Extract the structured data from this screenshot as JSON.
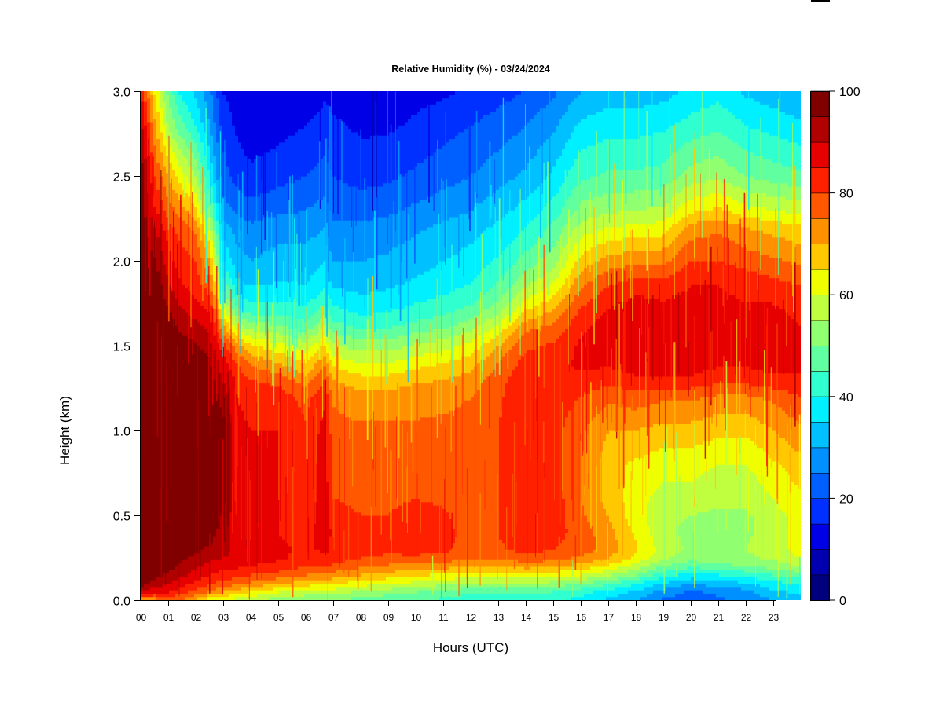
{
  "chart_data": {
    "type": "heatmap",
    "title": "Relative Humidity (%) - 03/24/2024",
    "xlabel": "Hours (UTC)",
    "ylabel": "Height (km)",
    "xlim": [
      0,
      24
    ],
    "ylim": [
      0,
      3
    ],
    "x_tick_labels": [
      "00",
      "01",
      "02",
      "03",
      "04",
      "05",
      "06",
      "07",
      "08",
      "09",
      "10",
      "11",
      "12",
      "13",
      "14",
      "15",
      "16",
      "17",
      "18",
      "19",
      "20",
      "21",
      "22",
      "23"
    ],
    "y_tick_labels": [
      "0.0",
      "0.5",
      "1.0",
      "1.5",
      "2.0",
      "2.5",
      "3.0"
    ],
    "y_ticks": [
      0,
      0.5,
      1.0,
      1.5,
      2.0,
      2.5,
      3.0
    ],
    "colorbar": {
      "min": 0,
      "max": 100,
      "step": 5,
      "tick_values": [
        0,
        20,
        40,
        60,
        80,
        100
      ],
      "tick_labels": [
        "0",
        "20",
        "40",
        "60",
        "80",
        "100"
      ],
      "colors": [
        "#00007f",
        "#0000b0",
        "#0000e6",
        "#0030ff",
        "#0060ff",
        "#0090ff",
        "#00c0ff",
        "#00f0ff",
        "#30ffd0",
        "#60ffa0",
        "#90ff70",
        "#c0ff40",
        "#f0ff00",
        "#ffc800",
        "#ff9000",
        "#ff5800",
        "#ff2000",
        "#e60000",
        "#b00000",
        "#800000"
      ]
    },
    "grid": false,
    "legend": "colorbar-right",
    "profile_heights_km": [
      0.0,
      0.05,
      0.1,
      0.15,
      0.2,
      0.25,
      0.3,
      0.4,
      0.5,
      0.6,
      0.8,
      1.0,
      1.2,
      1.3,
      1.4,
      1.5,
      1.6,
      1.7,
      1.8,
      1.9,
      2.0,
      2.1,
      2.2,
      2.3,
      2.5,
      2.8,
      3.0
    ],
    "profiles": [
      {
        "hour": 0.0,
        "rh": [
          70,
          90,
          97,
          99,
          99,
          99,
          99,
          99,
          99,
          99,
          99,
          99,
          99,
          99,
          99,
          99,
          99,
          99,
          99,
          99,
          99,
          99,
          99,
          99,
          99,
          92,
          85
        ]
      },
      {
        "hour": 0.5,
        "rh": [
          72,
          85,
          93,
          97,
          99,
          99,
          99,
          99,
          99,
          99,
          99,
          99,
          99,
          99,
          99,
          99,
          99,
          99,
          99,
          98,
          96,
          93,
          90,
          86,
          80,
          72,
          65
        ]
      },
      {
        "hour": 1.0,
        "rh": [
          75,
          85,
          90,
          94,
          97,
          99,
          99,
          99,
          99,
          99,
          99,
          99,
          99,
          99,
          99,
          99,
          98,
          96,
          93,
          90,
          87,
          85,
          82,
          78,
          70,
          55,
          48
        ]
      },
      {
        "hour": 1.5,
        "rh": [
          75,
          82,
          87,
          91,
          94,
          96,
          98,
          99,
          99,
          99,
          99,
          99,
          99,
          99,
          98,
          97,
          94,
          91,
          87,
          84,
          82,
          80,
          77,
          72,
          62,
          46,
          38
        ]
      },
      {
        "hour": 2.0,
        "rh": [
          68,
          78,
          84,
          88,
          91,
          94,
          96,
          98,
          99,
          99,
          99,
          99,
          99,
          99,
          98,
          96,
          92,
          88,
          84,
          82,
          80,
          77,
          73,
          66,
          55,
          40,
          34
        ]
      },
      {
        "hour": 2.5,
        "rh": [
          62,
          74,
          80,
          85,
          88,
          91,
          94,
          97,
          99,
          99,
          99,
          99,
          99,
          98,
          96,
          93,
          89,
          85,
          80,
          75,
          70,
          65,
          58,
          50,
          40,
          30,
          26
        ]
      },
      {
        "hour": 3.0,
        "rh": [
          60,
          70,
          78,
          83,
          87,
          90,
          92,
          93,
          94,
          96,
          97,
          97,
          93,
          90,
          87,
          82,
          72,
          62,
          52,
          45,
          40,
          36,
          32,
          27,
          22,
          18,
          15
        ]
      },
      {
        "hour": 3.5,
        "rh": [
          58,
          67,
          76,
          82,
          86,
          88,
          88,
          86,
          86,
          86,
          86,
          86,
          85,
          84,
          80,
          72,
          60,
          48,
          40,
          35,
          32,
          30,
          28,
          24,
          18,
          14,
          12
        ]
      },
      {
        "hour": 4.0,
        "rh": [
          56,
          64,
          74,
          80,
          85,
          87,
          86,
          85,
          85,
          85,
          85,
          85,
          84,
          80,
          74,
          66,
          54,
          44,
          37,
          33,
          30,
          28,
          26,
          22,
          16,
          12,
          10
        ]
      },
      {
        "hour": 5.0,
        "rh": [
          52,
          60,
          70,
          78,
          83,
          86,
          86,
          85,
          85,
          85,
          85,
          85,
          83,
          78,
          70,
          62,
          52,
          44,
          38,
          34,
          32,
          30,
          28,
          24,
          18,
          13,
          10
        ]
      },
      {
        "hour": 6.0,
        "rh": [
          50,
          58,
          67,
          75,
          80,
          83,
          84,
          83,
          83,
          82,
          82,
          81,
          78,
          72,
          65,
          57,
          48,
          42,
          37,
          34,
          32,
          30,
          28,
          25,
          20,
          15,
          12
        ]
      },
      {
        "hour": 6.7,
        "rh": [
          50,
          58,
          66,
          74,
          80,
          84,
          86,
          88,
          88,
          88,
          88,
          87,
          84,
          80,
          74,
          66,
          56,
          48,
          42,
          38,
          35,
          32,
          30,
          27,
          22,
          17,
          14
        ]
      },
      {
        "hour": 7.0,
        "rh": [
          50,
          57,
          65,
          73,
          79,
          83,
          84,
          84,
          82,
          80,
          78,
          77,
          74,
          70,
          63,
          56,
          48,
          42,
          37,
          33,
          30,
          28,
          26,
          24,
          20,
          16,
          13
        ]
      },
      {
        "hour": 8.0,
        "rh": [
          48,
          54,
          62,
          70,
          76,
          80,
          82,
          81,
          80,
          79,
          78,
          76,
          72,
          67,
          60,
          53,
          45,
          39,
          35,
          32,
          30,
          28,
          26,
          23,
          18,
          14,
          11
        ]
      },
      {
        "hour": 9.0,
        "rh": [
          46,
          52,
          60,
          68,
          74,
          79,
          81,
          81,
          80,
          79,
          78,
          76,
          72,
          67,
          60,
          53,
          45,
          40,
          36,
          33,
          31,
          29,
          27,
          24,
          19,
          14,
          11
        ]
      },
      {
        "hour": 10.0,
        "rh": [
          45,
          50,
          58,
          66,
          73,
          79,
          82,
          83,
          82,
          80,
          78,
          76,
          73,
          69,
          63,
          56,
          48,
          42,
          38,
          35,
          33,
          31,
          29,
          26,
          21,
          16,
          13
        ]
      },
      {
        "hour": 11.0,
        "rh": [
          44,
          48,
          56,
          64,
          72,
          78,
          81,
          82,
          81,
          79,
          77,
          76,
          74,
          70,
          65,
          58,
          50,
          44,
          40,
          37,
          35,
          33,
          31,
          28,
          23,
          18,
          14
        ]
      },
      {
        "hour": 12.0,
        "rh": [
          42,
          46,
          54,
          62,
          70,
          76,
          78,
          77,
          76,
          76,
          76,
          76,
          75,
          72,
          68,
          62,
          54,
          47,
          42,
          39,
          37,
          35,
          33,
          30,
          25,
          20,
          16
        ]
      },
      {
        "hour": 13.0,
        "rh": [
          42,
          46,
          54,
          62,
          70,
          76,
          79,
          80,
          80,
          80,
          80,
          80,
          79,
          78,
          75,
          70,
          62,
          54,
          48,
          44,
          41,
          38,
          36,
          33,
          28,
          22,
          18
        ]
      },
      {
        "hour": 14.0,
        "rh": [
          42,
          46,
          54,
          63,
          72,
          78,
          82,
          84,
          84,
          84,
          84,
          84,
          84,
          84,
          82,
          79,
          74,
          66,
          58,
          52,
          47,
          43,
          40,
          37,
          31,
          25,
          20
        ]
      },
      {
        "hour": 15.0,
        "rh": [
          41,
          45,
          53,
          62,
          71,
          77,
          80,
          82,
          83,
          83,
          82,
          82,
          83,
          84,
          83,
          81,
          77,
          71,
          64,
          58,
          53,
          49,
          46,
          42,
          36,
          29,
          24
        ]
      },
      {
        "hour": 16.0,
        "rh": [
          38,
          42,
          50,
          60,
          68,
          74,
          78,
          78,
          76,
          75,
          75,
          76,
          80,
          84,
          86,
          86,
          84,
          81,
          77,
          72,
          67,
          62,
          57,
          52,
          44,
          36,
          30
        ]
      },
      {
        "hour": 17.0,
        "rh": [
          34,
          38,
          46,
          56,
          64,
          70,
          73,
          72,
          70,
          68,
          67,
          70,
          76,
          82,
          86,
          88,
          88,
          86,
          82,
          78,
          72,
          66,
          60,
          54,
          46,
          38,
          32
        ]
      },
      {
        "hour": 18.0,
        "rh": [
          30,
          34,
          40,
          50,
          58,
          64,
          66,
          64,
          62,
          62,
          64,
          70,
          78,
          84,
          88,
          89,
          89,
          88,
          85,
          80,
          74,
          68,
          61,
          55,
          46,
          38,
          32
        ]
      },
      {
        "hour": 19.0,
        "rh": [
          24,
          28,
          34,
          42,
          50,
          56,
          58,
          56,
          56,
          58,
          62,
          68,
          76,
          84,
          88,
          89,
          89,
          87,
          84,
          80,
          74,
          68,
          62,
          56,
          47,
          39,
          33
        ]
      },
      {
        "hour": 20.0,
        "rh": [
          22,
          24,
          30,
          38,
          46,
          52,
          54,
          54,
          55,
          58,
          62,
          68,
          76,
          84,
          88,
          89,
          89,
          88,
          86,
          84,
          80,
          76,
          72,
          64,
          52,
          42,
          36
        ]
      },
      {
        "hour": 21.0,
        "rh": [
          24,
          26,
          32,
          40,
          48,
          54,
          55,
          54,
          54,
          56,
          60,
          66,
          74,
          82,
          86,
          88,
          88,
          88,
          86,
          84,
          80,
          77,
          74,
          66,
          54,
          44,
          38
        ]
      },
      {
        "hour": 22.0,
        "rh": [
          26,
          28,
          34,
          42,
          50,
          54,
          55,
          54,
          54,
          56,
          60,
          66,
          74,
          82,
          86,
          87,
          87,
          86,
          84,
          82,
          78,
          74,
          70,
          62,
          50,
          40,
          34
        ]
      },
      {
        "hour": 23.0,
        "rh": [
          30,
          34,
          38,
          45,
          52,
          56,
          58,
          58,
          58,
          60,
          64,
          70,
          76,
          84,
          87,
          88,
          87,
          86,
          84,
          80,
          76,
          72,
          68,
          60,
          48,
          38,
          32
        ]
      },
      {
        "hour": 24.0,
        "rh": [
          32,
          36,
          40,
          48,
          55,
          60,
          62,
          62,
          62,
          64,
          68,
          74,
          80,
          84,
          86,
          86,
          85,
          84,
          82,
          78,
          74,
          70,
          66,
          58,
          46,
          36,
          30
        ]
      }
    ]
  }
}
